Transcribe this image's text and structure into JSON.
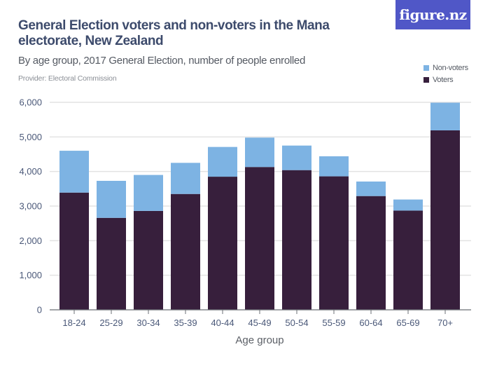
{
  "header": {
    "title": "General Election voters and non-voters in the Mana electorate, New Zealand",
    "subtitle": "By age group, 2017 General Election, number of people enrolled",
    "provider": "Provider: Electoral Commission",
    "logo_text": "figure.nz",
    "logo_color": "#5057c7"
  },
  "chart_data": {
    "type": "bar",
    "stacked": true,
    "title": "General Election voters and non-voters in the Mana electorate, New Zealand",
    "subtitle": "By age group, 2017 General Election, number of people enrolled",
    "xlabel": "Age group",
    "ylabel": "",
    "ylim": [
      0,
      6000
    ],
    "yticks": [
      0,
      1000,
      2000,
      3000,
      4000,
      5000,
      6000
    ],
    "ytick_labels": [
      "0",
      "1,000",
      "2,000",
      "3,000",
      "4,000",
      "5,000",
      "6,000"
    ],
    "grid": true,
    "legend_position": "top-right",
    "categories": [
      "18-24",
      "25-29",
      "30-34",
      "35-39",
      "40-44",
      "45-49",
      "50-54",
      "55-59",
      "60-64",
      "65-69",
      "70+"
    ],
    "series": [
      {
        "name": "Voters",
        "color": "#371f3c",
        "values": [
          3390,
          2660,
          2860,
          3350,
          3850,
          4130,
          4040,
          3860,
          3290,
          2870,
          5190
        ]
      },
      {
        "name": "Non-voters",
        "color": "#7db3e3",
        "values": [
          1210,
          1070,
          1040,
          900,
          860,
          850,
          710,
          580,
          420,
          320,
          800
        ]
      }
    ]
  },
  "legend": [
    {
      "label": "Non-voters",
      "color": "#7db3e3"
    },
    {
      "label": "Voters",
      "color": "#371f3c"
    }
  ]
}
